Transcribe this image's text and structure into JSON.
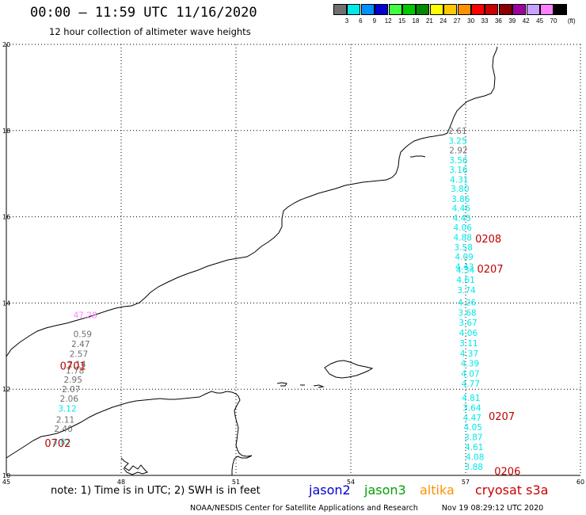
{
  "header": {
    "title": "00:00 — 11:59 UTC 11/16/2020",
    "subtitle": "12 hour collection of altimeter wave heights"
  },
  "legend": {
    "unit": "(ft)",
    "items": [
      {
        "label": "3",
        "color": "#707070"
      },
      {
        "label": "6",
        "color": "#00e8e8"
      },
      {
        "label": "9",
        "color": "#0090ff"
      },
      {
        "label": "12",
        "color": "#0000d0"
      },
      {
        "label": "15",
        "color": "#40ff40"
      },
      {
        "label": "18",
        "color": "#00c800"
      },
      {
        "label": "21",
        "color": "#008800"
      },
      {
        "label": "24",
        "color": "#ffff00"
      },
      {
        "label": "27",
        "color": "#ffc800"
      },
      {
        "label": "30",
        "color": "#ff9000"
      },
      {
        "label": "33",
        "color": "#ff0000"
      },
      {
        "label": "36",
        "color": "#c80000"
      },
      {
        "label": "39",
        "color": "#880000"
      },
      {
        "label": "42",
        "color": "#a000a0"
      },
      {
        "label": "45",
        "color": "#c8a0ff"
      },
      {
        "label": "70",
        "color": "#ff80ff"
      },
      {
        "label": "",
        "color": "#000000"
      }
    ]
  },
  "map": {
    "lon_range": [
      45,
      60
    ],
    "lat_range": [
      10,
      20
    ],
    "lon_ticks": [
      "45",
      "48",
      "51",
      "54",
      "57",
      "60"
    ],
    "lat_ticks": [
      "10",
      "12",
      "14",
      "16",
      "18",
      "20"
    ],
    "time_labels": [
      {
        "text": "0208",
        "lon": 57.25,
        "lat": 15.5
      },
      {
        "text": "0207",
        "lon": 57.3,
        "lat": 14.8
      },
      {
        "text": "0701",
        "lon": 46.4,
        "lat": 12.55
      },
      {
        "text": "0207",
        "lon": 57.6,
        "lat": 11.38
      },
      {
        "text": "0702",
        "lon": 46.0,
        "lat": 10.75
      },
      {
        "text": "0206",
        "lon": 57.75,
        "lat": 10.1
      }
    ],
    "tracks": [
      {
        "name": "track-east",
        "points": [
          {
            "text": "2.61",
            "lon": 56.55,
            "lat": 18.0,
            "color": "#707070"
          },
          {
            "text": "3.25",
            "lon": 56.55,
            "lat": 17.77,
            "color": "#00e8e8"
          },
          {
            "text": "2.92",
            "lon": 56.57,
            "lat": 17.55,
            "color": "#707070"
          },
          {
            "text": "3.56",
            "lon": 56.57,
            "lat": 17.32,
            "color": "#00e8e8"
          },
          {
            "text": "3.16",
            "lon": 56.57,
            "lat": 17.1,
            "color": "#00e8e8"
          },
          {
            "text": "4.31",
            "lon": 56.59,
            "lat": 16.87,
            "color": "#00e8e8"
          },
          {
            "text": "3.80",
            "lon": 56.61,
            "lat": 16.65,
            "color": "#00e8e8"
          },
          {
            "text": "3.86",
            "lon": 56.63,
            "lat": 16.42,
            "color": "#00e8e8"
          },
          {
            "text": "4.46",
            "lon": 56.64,
            "lat": 16.2,
            "color": "#00e8e8"
          },
          {
            "text": "4.45",
            "lon": 56.66,
            "lat": 15.97,
            "color": "#00e8e8"
          },
          {
            "text": "4.06",
            "lon": 56.68,
            "lat": 15.75,
            "color": "#00e8e8"
          },
          {
            "text": "4.88",
            "lon": 56.68,
            "lat": 15.52,
            "color": "#00e8e8"
          },
          {
            "text": "3.58",
            "lon": 56.7,
            "lat": 15.29,
            "color": "#00e8e8"
          },
          {
            "text": "4.09",
            "lon": 56.72,
            "lat": 15.07,
            "color": "#00e8e8"
          },
          {
            "text": "4.43",
            "lon": 56.73,
            "lat": 14.84,
            "color": "#00e8e8"
          },
          {
            "text": "4.34",
            "lon": 56.75,
            "lat": 14.77,
            "color": "#00e8e8"
          },
          {
            "text": "4.61",
            "lon": 56.76,
            "lat": 14.54,
            "color": "#00e8e8"
          },
          {
            "text": "3.74",
            "lon": 56.78,
            "lat": 14.3,
            "color": "#00e8e8"
          },
          {
            "text": "4.26",
            "lon": 56.79,
            "lat": 14.02,
            "color": "#00e8e8"
          },
          {
            "text": "3.68",
            "lon": 56.8,
            "lat": 13.78,
            "color": "#00e8e8"
          },
          {
            "text": "3.67",
            "lon": 56.82,
            "lat": 13.55,
            "color": "#00e8e8"
          },
          {
            "text": "4.06",
            "lon": 56.83,
            "lat": 13.31,
            "color": "#00e8e8"
          },
          {
            "text": "3.11",
            "lon": 56.84,
            "lat": 13.07,
            "color": "#00e8e8"
          },
          {
            "text": "4.37",
            "lon": 56.85,
            "lat": 12.83,
            "color": "#00e8e8"
          },
          {
            "text": "4.39",
            "lon": 56.87,
            "lat": 12.6,
            "color": "#00e8e8"
          },
          {
            "text": "4.07",
            "lon": 56.88,
            "lat": 12.36,
            "color": "#00e8e8"
          },
          {
            "text": "4.77",
            "lon": 56.89,
            "lat": 12.13,
            "color": "#00e8e8"
          },
          {
            "text": "4.81",
            "lon": 56.9,
            "lat": 11.8,
            "color": "#00e8e8"
          },
          {
            "text": "3.64",
            "lon": 56.92,
            "lat": 11.57,
            "color": "#00e8e8"
          },
          {
            "text": "4.47",
            "lon": 56.93,
            "lat": 11.34,
            "color": "#00e8e8"
          },
          {
            "text": "4.05",
            "lon": 56.95,
            "lat": 11.12,
            "color": "#00e8e8"
          },
          {
            "text": "3.87",
            "lon": 56.96,
            "lat": 10.89,
            "color": "#00e8e8"
          },
          {
            "text": "4.61",
            "lon": 56.98,
            "lat": 10.66,
            "color": "#00e8e8"
          },
          {
            "text": "4.08",
            "lon": 57.0,
            "lat": 10.43,
            "color": "#00e8e8"
          },
          {
            "text": "3.88",
            "lon": 56.97,
            "lat": 10.2,
            "color": "#00e8e8"
          }
        ]
      },
      {
        "name": "track-west",
        "points": [
          {
            "text": "47.28",
            "lon": 46.75,
            "lat": 13.72,
            "color": "#ff80ff"
          },
          {
            "text": "0.59",
            "lon": 46.75,
            "lat": 13.28,
            "color": "#707070"
          },
          {
            "text": "2.47",
            "lon": 46.7,
            "lat": 13.05,
            "color": "#707070"
          },
          {
            "text": "2.57",
            "lon": 46.65,
            "lat": 12.82,
            "color": "#707070"
          },
          {
            "text": "2.14",
            "lon": 46.6,
            "lat": 12.58,
            "color": "#707070"
          },
          {
            "text": "1.78",
            "lon": 46.55,
            "lat": 12.44,
            "color": "#707070"
          },
          {
            "text": "2.95",
            "lon": 46.5,
            "lat": 12.22,
            "color": "#707070"
          },
          {
            "text": "2.07",
            "lon": 46.45,
            "lat": 12.0,
            "color": "#707070"
          },
          {
            "text": "2.06",
            "lon": 46.4,
            "lat": 11.78,
            "color": "#707070"
          },
          {
            "text": "3.12",
            "lon": 46.35,
            "lat": 11.55,
            "color": "#00e8e8"
          },
          {
            "text": "2.11",
            "lon": 46.3,
            "lat": 11.3,
            "color": "#707070"
          },
          {
            "text": "2.40",
            "lon": 46.25,
            "lat": 11.08,
            "color": "#707070"
          },
          {
            "text": "3.82",
            "lon": 46.2,
            "lat": 10.78,
            "color": "#00e8e8"
          }
        ]
      }
    ]
  },
  "footer": {
    "note": "note: 1) Time is in UTC; 2) SWH is in feet",
    "satellites": [
      {
        "label": "jason2",
        "color": "#0000d0"
      },
      {
        "label": "jason3",
        "color": "#00a000"
      },
      {
        "label": "altika",
        "color": "#ff9000"
      },
      {
        "label": "cryosat s3a",
        "color": "#c80000"
      }
    ],
    "credit": "NOAA/NESDIS Center for Satellite Applications and Research",
    "timestamp": "Nov 19 08:29:12 UTC 2020"
  }
}
